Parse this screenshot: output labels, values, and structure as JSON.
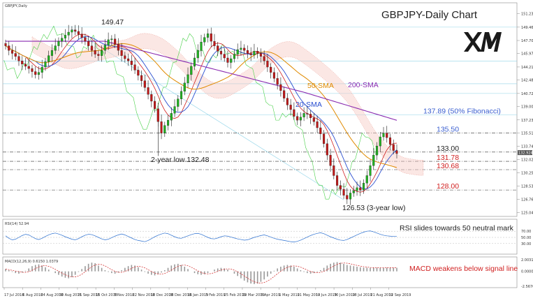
{
  "chart_data": {
    "type": "candlestick",
    "symbol_label": "GBPJPY,Daily",
    "title": "GBPJPY-Daily Chart",
    "brand": "XM",
    "price_ylim": [
      124.7,
      152.3
    ],
    "price_ticks": [
      "151.230",
      "149.460",
      "147.700",
      "145.978",
      "144.210",
      "142.488",
      "140.720",
      "139.000",
      "137.232",
      "135.510",
      "133.742",
      "132.020",
      "130.252",
      "128.530",
      "126.762",
      "125.040"
    ],
    "x_labels": [
      "17 Jul 2018",
      "6 Aug 2018",
      "24 Aug 2018",
      "30 Aug 2018",
      "21 Sep 2018",
      "15 Oct 2018",
      "5 Nov 2018",
      "22 Nov 2018",
      "10 Dec 2018",
      "28 Dec 2018",
      "16 Jan 2019",
      "5 Feb 2019",
      "25 Feb 2019",
      "19 Mar 2019",
      "8 Apr 2019",
      "1 May 2019",
      "21 May 2019",
      "10 Jun 2019",
      "30 Jun 2019",
      "18 Jul 2019",
      "21 Aug 2019",
      "12 Sep 2019"
    ],
    "closes": [
      147.0,
      146.4,
      146.0,
      145.6,
      145.0,
      144.6,
      144.3,
      144.0,
      143.6,
      143.2,
      143.5,
      144.2,
      144.9,
      145.7,
      146.4,
      147.0,
      147.6,
      148.0,
      148.4,
      148.8,
      149.1,
      148.9,
      148.5,
      148.1,
      147.6,
      147.0,
      146.4,
      145.9,
      145.7,
      146.4,
      147.1,
      147.8,
      147.9,
      147.2,
      146.4,
      145.7,
      145.3,
      145.0,
      144.5,
      143.8,
      143.1,
      142.4,
      141.5,
      140.6,
      139.7,
      138.7,
      137.0,
      135.5,
      136.5,
      137.2,
      138.1,
      139.0,
      140.0,
      141.0,
      142.1,
      143.2,
      144.3,
      145.4,
      146.4,
      147.5,
      148.1,
      148.6,
      147.6,
      147.0,
      146.3,
      145.9,
      145.4,
      144.8,
      145.3,
      145.9,
      146.5,
      146.7,
      146.4,
      146.0,
      145.8,
      146.3,
      146.0,
      145.6,
      145.0,
      144.2,
      143.5,
      142.7,
      141.9,
      141.1,
      140.1,
      139.2,
      138.6,
      137.7,
      137.2,
      137.6,
      138.1,
      138.0,
      137.5,
      137.0,
      136.2,
      135.4,
      134.1,
      132.6,
      131.2,
      129.9,
      128.6,
      128.1,
      127.3,
      126.8,
      127.6,
      127.9,
      128.3,
      128.0,
      128.9,
      129.9,
      131.2,
      132.6,
      133.8,
      135.0,
      135.5,
      134.9,
      134.0,
      133.2,
      132.8
    ],
    "highs": [
      {
        "x": 21,
        "v": 149.47
      }
    ],
    "levels": [
      {
        "value": 137.89,
        "label": "137.89 (50% Fibonacci)",
        "color": "#3a5fd0"
      },
      {
        "value": 135.5,
        "label": "135.50",
        "color": "#3a5fd0"
      },
      {
        "value": 133.0,
        "label": "133.00",
        "color": "#222222"
      },
      {
        "value": 131.78,
        "label": "131.78",
        "color": "#d02020"
      },
      {
        "value": 130.68,
        "label": "130.68",
        "color": "#d02020"
      },
      {
        "value": 128.0,
        "label": "128.00",
        "color": "#d02020"
      }
    ],
    "annotations": {
      "high": "149.47",
      "two_year_low": "2-year low 132.48",
      "three_year_low": "126.53 (3-year low)",
      "sma200": "200-SMA",
      "sma50": "50-SMA",
      "sma20": "20-SMA"
    },
    "last_price_tag": "132.924",
    "rsi": {
      "label": "RSI(14) 52.94",
      "ticks": [
        "70.00",
        "50.00",
        "30.00"
      ],
      "note": "RSI slides towards 50 neutral mark",
      "values": [
        55,
        47,
        42,
        44,
        50,
        56,
        60,
        58,
        52,
        46,
        43,
        47,
        53,
        58,
        62,
        64,
        61,
        57,
        52,
        48,
        44,
        42,
        46,
        52,
        57,
        60,
        59,
        55,
        50,
        45,
        42,
        44,
        49,
        54,
        58,
        61,
        58,
        53,
        48,
        43,
        40,
        38,
        36,
        40,
        46,
        52,
        57,
        61,
        64,
        62,
        57,
        52,
        48,
        47,
        51,
        55,
        59,
        62,
        63,
        60,
        55,
        50,
        46,
        45,
        48,
        52,
        55,
        54,
        51,
        48,
        45,
        43,
        41,
        42,
        46,
        50,
        53,
        56,
        58,
        55,
        51,
        47,
        44,
        42,
        40,
        38,
        36,
        35,
        37,
        41,
        46,
        51,
        56,
        60,
        63,
        65,
        62,
        57,
        52,
        48,
        44,
        41,
        40,
        43,
        48,
        53,
        58,
        63,
        67,
        70,
        71,
        68,
        64,
        60,
        57,
        55,
        54,
        53,
        53
      ]
    },
    "macd": {
      "label": "MACD(12,26,9) 0.6150 1.0379",
      "ticks": [
        "2.0031",
        "0.0000",
        "-2.5676"
      ],
      "note": "MACD weakens below signal line",
      "values": [
        0.4,
        0.2,
        -0.1,
        -0.3,
        -0.4,
        -0.2,
        0.1,
        0.5,
        0.9,
        1.1,
        1.2,
        1.0,
        0.7,
        0.3,
        0.0,
        -0.3,
        -0.6,
        -0.9,
        -1.1,
        -1.2,
        -1.0,
        -0.6,
        -0.1,
        0.4,
        0.9,
        1.3,
        1.5,
        1.4,
        1.0,
        0.6,
        0.2,
        -0.1,
        -0.3,
        -0.4,
        -0.2,
        0.2,
        0.6,
        0.9,
        1.1,
        1.0,
        0.7,
        0.3,
        -0.1,
        -0.4,
        -0.6,
        -0.7,
        -0.5,
        -0.2,
        0.2,
        0.6,
        1.0,
        1.2,
        1.3,
        1.1,
        0.8,
        0.4,
        0.0,
        -0.3,
        -0.5,
        -0.6,
        -0.5,
        -0.3,
        0.0,
        0.3,
        0.5,
        0.6,
        0.5,
        0.3,
        0.0,
        -0.4,
        -0.8,
        -1.2,
        -1.6,
        -1.9,
        -2.1,
        -2.2,
        -2.1,
        -1.8,
        -1.4,
        -0.9,
        -0.4,
        0.1,
        0.5,
        0.8,
        1.0,
        1.1,
        1.0,
        0.8,
        0.5,
        0.2,
        -0.1,
        -0.3,
        -0.4,
        -0.3,
        -0.1,
        0.2,
        0.6,
        1.0,
        1.3,
        1.5,
        1.6,
        1.5,
        1.3,
        1.1,
        1.0,
        0.9,
        0.8,
        0.7,
        0.65,
        0.62,
        0.6,
        0.62,
        0.61,
        0.615,
        0.62,
        0.62,
        0.615,
        0.615,
        0.615
      ]
    }
  }
}
